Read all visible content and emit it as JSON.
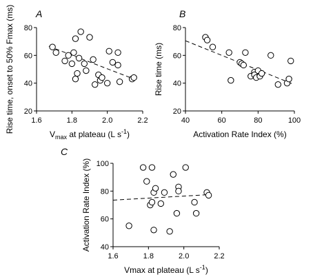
{
  "chart_data": [
    {
      "type": "scatter",
      "panel": "A",
      "xlabel": "Vmax at plateau (L s-1)",
      "xlabel_parts": {
        "base": "V",
        "sub": "max",
        "rest": " at plateau (L s",
        "sup": "-1",
        "end": ")"
      },
      "ylabel": "Rise time, onset to 50% Fmax (ms)",
      "xlim": [
        1.6,
        2.2
      ],
      "ylim": [
        20,
        80
      ],
      "xticks": [
        "1.6",
        "1.8",
        "2.0",
        "2.2"
      ],
      "yticks": [
        "20",
        "40",
        "60",
        "80"
      ],
      "x": [
        1.69,
        1.71,
        1.76,
        1.78,
        1.8,
        1.81,
        1.82,
        1.82,
        1.83,
        1.84,
        1.85,
        1.87,
        1.88,
        1.9,
        1.92,
        1.93,
        1.95,
        1.96,
        1.97,
        2.0,
        2.01,
        2.03,
        2.06,
        2.06,
        2.07,
        2.14,
        2.15
      ],
      "y": [
        66,
        62,
        56,
        60,
        54,
        62,
        43,
        72,
        47,
        58,
        77,
        54,
        49,
        73,
        57,
        39,
        46,
        42,
        44,
        40,
        63,
        55,
        62,
        53,
        41,
        43,
        44
      ],
      "trend": {
        "x": [
          1.67,
          2.15
        ],
        "y": [
          66.5,
          43
        ]
      }
    },
    {
      "type": "scatter",
      "panel": "B",
      "xlabel": "Activation Rate Index (%)",
      "ylabel": "Rise time (ms)",
      "xlim": [
        40,
        100
      ],
      "ylim": [
        20,
        80
      ],
      "xticks": [
        "40",
        "60",
        "80",
        "100"
      ],
      "yticks": [
        "20",
        "40",
        "60",
        "80"
      ],
      "x": [
        51,
        52,
        55,
        64,
        65,
        70,
        71,
        72,
        73,
        76,
        78,
        78,
        79,
        80,
        81,
        82,
        87,
        91,
        96,
        97,
        98
      ],
      "y": [
        73,
        71,
        66,
        62,
        42,
        55,
        54,
        53,
        62,
        45,
        48,
        46,
        44,
        49,
        45,
        47,
        60,
        39,
        40,
        43,
        56
      ],
      "trend": {
        "x": [
          40,
          99
        ],
        "y": [
          70.5,
          39.5
        ]
      }
    },
    {
      "type": "scatter",
      "panel": "C",
      "xlabel": "Vmax at plateau (L s-1)",
      "xlabel_parts": {
        "base": "Vmax",
        "sub": "",
        "rest": " at plateau (L s",
        "sup": "-1",
        "end": ")"
      },
      "ylabel": "Activation Rate Index (%)",
      "xlim": [
        1.6,
        2.2
      ],
      "ylim": [
        40,
        100
      ],
      "xticks": [
        "1.6",
        "1.8",
        "2.0",
        "2.2"
      ],
      "yticks": [
        "40",
        "60",
        "80",
        "100"
      ],
      "x": [
        1.69,
        1.77,
        1.79,
        1.81,
        1.82,
        1.82,
        1.83,
        1.83,
        1.84,
        1.87,
        1.89,
        1.92,
        1.94,
        1.96,
        1.97,
        1.97,
        2.01,
        2.06,
        2.07,
        2.13,
        2.14
      ],
      "y": [
        55,
        97,
        87,
        70,
        72,
        97,
        52,
        79,
        82,
        71,
        79,
        51,
        92,
        64,
        83,
        80,
        97,
        72,
        64,
        79,
        77
      ],
      "trend": {
        "x": [
          1.6,
          2.15
        ],
        "y": [
          73.5,
          77.5
        ]
      }
    }
  ]
}
